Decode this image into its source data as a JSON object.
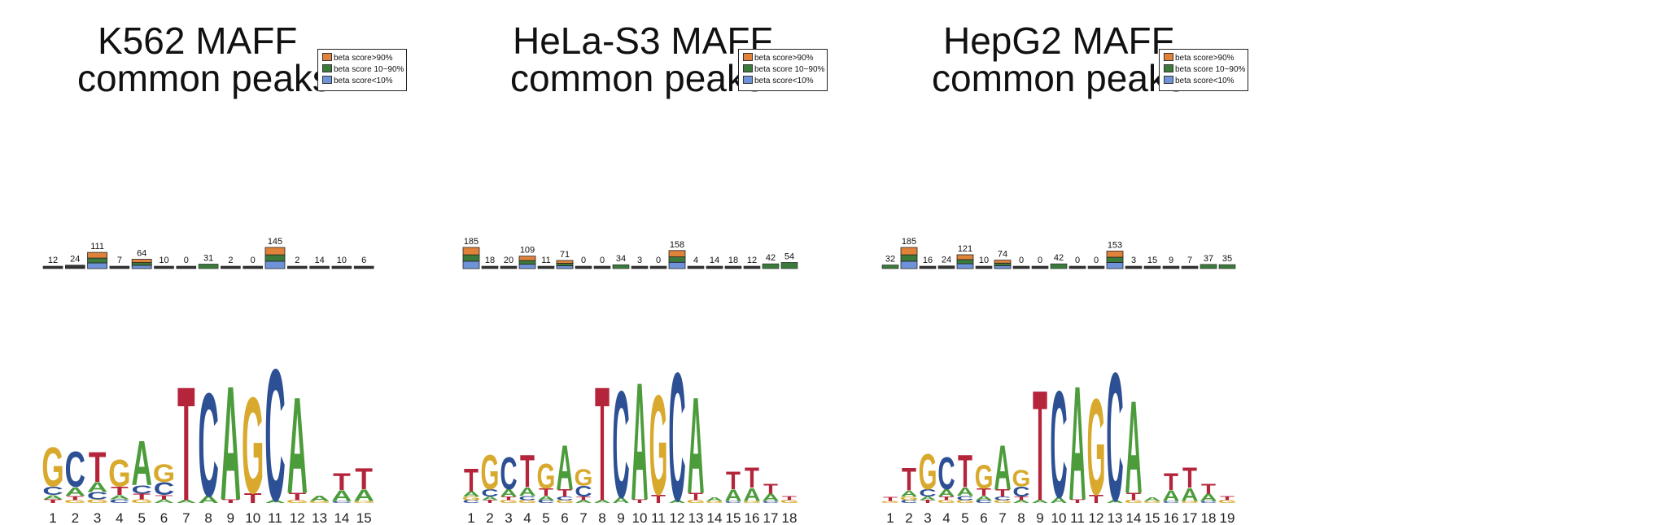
{
  "colors": {
    "beta_high": "#e0823a",
    "beta_mid": "#3c7a3c",
    "beta_low": "#6f93d8",
    "A": "#4c9c3c",
    "C": "#2d4f94",
    "G": "#d8a92c",
    "T": "#b4243a",
    "bar_line": "#222222"
  },
  "legend": {
    "items": [
      {
        "label": "beta score>90%",
        "color_key": "beta_high"
      },
      {
        "label": "beta score 10~90%",
        "color_key": "beta_mid"
      },
      {
        "label": "beta score<10%",
        "color_key": "beta_low"
      }
    ]
  },
  "panels": [
    {
      "title_line1": "K562 MAFF",
      "title_line2": "common peaks",
      "positions": [
        "1",
        "2",
        "3",
        "4",
        "5",
        "6",
        "7",
        "8",
        "9",
        "10",
        "11",
        "12",
        "13",
        "14",
        "15"
      ],
      "counts": [
        12,
        24,
        111,
        7,
        64,
        10,
        0,
        31,
        2,
        0,
        145,
        2,
        14,
        10,
        6
      ],
      "max_count": 145,
      "motif": [
        [
          [
            "G",
            0.55
          ],
          [
            "C",
            0.12
          ],
          [
            "A",
            0.06
          ],
          [
            "T",
            0.05
          ]
        ],
        [
          [
            "C",
            0.5
          ],
          [
            "A",
            0.12
          ],
          [
            "T",
            0.06
          ],
          [
            "G",
            0.04
          ]
        ],
        [
          [
            "T",
            0.42
          ],
          [
            "A",
            0.14
          ],
          [
            "C",
            0.1
          ],
          [
            "G",
            0.05
          ]
        ],
        [
          [
            "G",
            0.38
          ],
          [
            "T",
            0.12
          ],
          [
            "A",
            0.06
          ],
          [
            "C",
            0.05
          ]
        ],
        [
          [
            "A",
            0.62
          ],
          [
            "C",
            0.12
          ],
          [
            "T",
            0.08
          ],
          [
            "G",
            0.05
          ]
        ],
        [
          [
            "G",
            0.25
          ],
          [
            "C",
            0.18
          ],
          [
            "T",
            0.06
          ],
          [
            "A",
            0.05
          ]
        ],
        [
          [
            "T",
            1.6
          ],
          [
            "A",
            0.04
          ]
        ],
        [
          [
            "C",
            1.45
          ],
          [
            "A",
            0.1
          ]
        ],
        [
          [
            "A",
            1.6
          ],
          [
            "T",
            0.05
          ]
        ],
        [
          [
            "G",
            1.35
          ],
          [
            "T",
            0.14
          ]
        ],
        [
          [
            "C",
            1.85
          ],
          [
            "A",
            0.04
          ]
        ],
        [
          [
            "A",
            1.35
          ],
          [
            "T",
            0.1
          ],
          [
            "G",
            0.04
          ]
        ],
        [
          [
            "A",
            0.07
          ],
          [
            "G",
            0.03
          ]
        ],
        [
          [
            "T",
            0.24
          ],
          [
            "A",
            0.15
          ],
          [
            "C",
            0.03
          ]
        ],
        [
          [
            "T",
            0.3
          ],
          [
            "A",
            0.16
          ],
          [
            "G",
            0.03
          ]
        ]
      ]
    },
    {
      "title_line1": "HeLa-S3 MAFF",
      "title_line2": "common peaks",
      "positions": [
        "1",
        "2",
        "3",
        "4",
        "5",
        "6",
        "7",
        "8",
        "9",
        "10",
        "11",
        "12",
        "13",
        "14",
        "15",
        "16",
        "17",
        "18"
      ],
      "counts": [
        185,
        18,
        20,
        109,
        11,
        71,
        0,
        0,
        34,
        3,
        0,
        158,
        4,
        14,
        18,
        12,
        42,
        54
      ],
      "max_count": 185,
      "motif": [
        [
          [
            "T",
            0.32
          ],
          [
            "A",
            0.07
          ],
          [
            "G",
            0.05
          ],
          [
            "C",
            0.04
          ]
        ],
        [
          [
            "G",
            0.48
          ],
          [
            "C",
            0.1
          ],
          [
            "A",
            0.05
          ],
          [
            "T",
            0.04
          ]
        ],
        [
          [
            "C",
            0.45
          ],
          [
            "A",
            0.1
          ],
          [
            "T",
            0.05
          ],
          [
            "G",
            0.04
          ]
        ],
        [
          [
            "T",
            0.45
          ],
          [
            "A",
            0.12
          ],
          [
            "C",
            0.06
          ],
          [
            "G",
            0.04
          ]
        ],
        [
          [
            "G",
            0.35
          ],
          [
            "T",
            0.1
          ],
          [
            "A",
            0.06
          ],
          [
            "C",
            0.04
          ]
        ],
        [
          [
            "A",
            0.62
          ],
          [
            "T",
            0.1
          ],
          [
            "C",
            0.05
          ],
          [
            "G",
            0.04
          ]
        ],
        [
          [
            "G",
            0.23
          ],
          [
            "C",
            0.15
          ],
          [
            "T",
            0.05
          ],
          [
            "A",
            0.04
          ]
        ],
        [
          [
            "T",
            1.6
          ],
          [
            "A",
            0.04
          ]
        ],
        [
          [
            "C",
            1.5
          ],
          [
            "A",
            0.08
          ]
        ],
        [
          [
            "A",
            1.65
          ],
          [
            "T",
            0.05
          ]
        ],
        [
          [
            "G",
            1.4
          ],
          [
            "T",
            0.12
          ]
        ],
        [
          [
            "C",
            1.8
          ],
          [
            "A",
            0.04
          ]
        ],
        [
          [
            "A",
            1.35
          ],
          [
            "T",
            0.1
          ],
          [
            "G",
            0.04
          ]
        ],
        [
          [
            "A",
            0.05
          ],
          [
            "G",
            0.03
          ]
        ],
        [
          [
            "T",
            0.25
          ],
          [
            "A",
            0.16
          ],
          [
            "C",
            0.03
          ]
        ],
        [
          [
            "T",
            0.28
          ],
          [
            "A",
            0.18
          ],
          [
            "G",
            0.03
          ]
        ],
        [
          [
            "T",
            0.14
          ],
          [
            "A",
            0.1
          ],
          [
            "C",
            0.03
          ]
        ],
        [
          [
            "T",
            0.06
          ],
          [
            "G",
            0.04
          ]
        ]
      ]
    },
    {
      "title_line1": "HepG2 MAFF",
      "title_line2": "common peaks",
      "positions": [
        "1",
        "2",
        "3",
        "4",
        "5",
        "6",
        "7",
        "8",
        "9",
        "10",
        "11",
        "12",
        "13",
        "14",
        "15",
        "16",
        "17",
        "18",
        "19"
      ],
      "counts": [
        32,
        185,
        16,
        24,
        121,
        10,
        74,
        0,
        0,
        42,
        0,
        0,
        153,
        3,
        15,
        9,
        7,
        37,
        35
      ],
      "max_count": 185,
      "motif": [
        [
          [
            "T",
            0.06
          ],
          [
            "G",
            0.03
          ]
        ],
        [
          [
            "T",
            0.32
          ],
          [
            "A",
            0.08
          ],
          [
            "G",
            0.05
          ],
          [
            "C",
            0.04
          ]
        ],
        [
          [
            "G",
            0.5
          ],
          [
            "C",
            0.1
          ],
          [
            "A",
            0.05
          ],
          [
            "T",
            0.04
          ]
        ],
        [
          [
            "C",
            0.45
          ],
          [
            "A",
            0.1
          ],
          [
            "T",
            0.05
          ],
          [
            "G",
            0.04
          ]
        ],
        [
          [
            "T",
            0.45
          ],
          [
            "A",
            0.12
          ],
          [
            "C",
            0.06
          ],
          [
            "G",
            0.04
          ]
        ],
        [
          [
            "G",
            0.33
          ],
          [
            "T",
            0.1
          ],
          [
            "A",
            0.06
          ],
          [
            "C",
            0.04
          ]
        ],
        [
          [
            "A",
            0.62
          ],
          [
            "T",
            0.1
          ],
          [
            "C",
            0.05
          ],
          [
            "G",
            0.04
          ]
        ],
        [
          [
            "G",
            0.23
          ],
          [
            "C",
            0.14
          ],
          [
            "T",
            0.05
          ],
          [
            "A",
            0.04
          ]
        ],
        [
          [
            "T",
            1.55
          ],
          [
            "A",
            0.04
          ]
        ],
        [
          [
            "C",
            1.5
          ],
          [
            "A",
            0.08
          ]
        ],
        [
          [
            "A",
            1.6
          ],
          [
            "T",
            0.05
          ]
        ],
        [
          [
            "G",
            1.35
          ],
          [
            "T",
            0.12
          ]
        ],
        [
          [
            "C",
            1.8
          ],
          [
            "A",
            0.04
          ]
        ],
        [
          [
            "A",
            1.3
          ],
          [
            "T",
            0.1
          ],
          [
            "G",
            0.04
          ]
        ],
        [
          [
            "A",
            0.05
          ],
          [
            "G",
            0.03
          ]
        ],
        [
          [
            "T",
            0.24
          ],
          [
            "A",
            0.15
          ],
          [
            "C",
            0.03
          ]
        ],
        [
          [
            "T",
            0.28
          ],
          [
            "A",
            0.18
          ],
          [
            "G",
            0.03
          ]
        ],
        [
          [
            "T",
            0.14
          ],
          [
            "A",
            0.1
          ],
          [
            "C",
            0.03
          ]
        ],
        [
          [
            "T",
            0.06
          ],
          [
            "G",
            0.04
          ]
        ]
      ]
    }
  ]
}
